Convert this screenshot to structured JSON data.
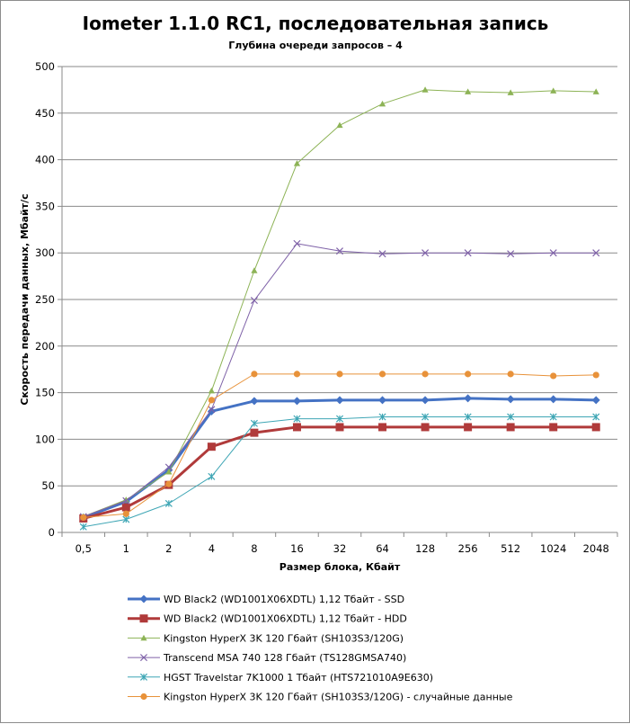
{
  "chart_data": {
    "type": "line",
    "title": "Iometer 1.1.0 RC1, последовательная запись",
    "subtitle": "Глубина очереди запросов – 4",
    "xlabel": "Размер блока, Кбайт",
    "ylabel": "Скорость передачи данных, Мбайт/с",
    "ylim": [
      0,
      500
    ],
    "yticks": [
      0,
      50,
      100,
      150,
      200,
      250,
      300,
      350,
      400,
      450,
      500
    ],
    "categories": [
      "0,5",
      "1",
      "2",
      "4",
      "8",
      "16",
      "32",
      "64",
      "128",
      "256",
      "512",
      "1024",
      "2048"
    ],
    "grid": "horizontal",
    "legend_position": "bottom",
    "series": [
      {
        "name": "WD Black2 (WD1001X06XDTL) 1,12 Тбайт - SSD",
        "color": "#4472c4",
        "marker": "diamond",
        "bold": true,
        "values": [
          16,
          33,
          67,
          130,
          141,
          141,
          142,
          142,
          142,
          144,
          143,
          143,
          142
        ]
      },
      {
        "name": "WD Black2 (WD1001X06XDTL) 1,12 Тбайт - HDD",
        "color": "#b03a3a",
        "marker": "square",
        "bold": true,
        "values": [
          15,
          27,
          51,
          92,
          107,
          113,
          113,
          113,
          113,
          113,
          113,
          113,
          113
        ]
      },
      {
        "name": "Kingston HyperX 3K 120 Гбайт (SH103S3/120G)",
        "color": "#8db356",
        "marker": "triangle",
        "bold": false,
        "values": [
          17,
          35,
          65,
          152,
          281,
          396,
          437,
          460,
          475,
          473,
          472,
          474,
          473
        ]
      },
      {
        "name": "Transcend MSA 740 128 Гбайт (TS128GMSA740)",
        "color": "#7f62a8",
        "marker": "x",
        "bold": false,
        "values": [
          17,
          34,
          70,
          132,
          249,
          310,
          302,
          299,
          300,
          300,
          299,
          300,
          300
        ]
      },
      {
        "name": "HGST Travelstar 7K1000 1 Тбайт (HTS721010A9E630)",
        "color": "#3fa6b5",
        "marker": "star",
        "bold": false,
        "values": [
          6,
          14,
          31,
          60,
          117,
          122,
          122,
          124,
          124,
          124,
          124,
          124,
          124
        ]
      },
      {
        "name": "Kingston HyperX 3K 120 Гбайт (SH103S3/120G) - случайные данные",
        "color": "#e8923a",
        "marker": "circle",
        "bold": false,
        "values": [
          16,
          20,
          52,
          142,
          170,
          170,
          170,
          170,
          170,
          170,
          170,
          168,
          169
        ]
      }
    ]
  }
}
